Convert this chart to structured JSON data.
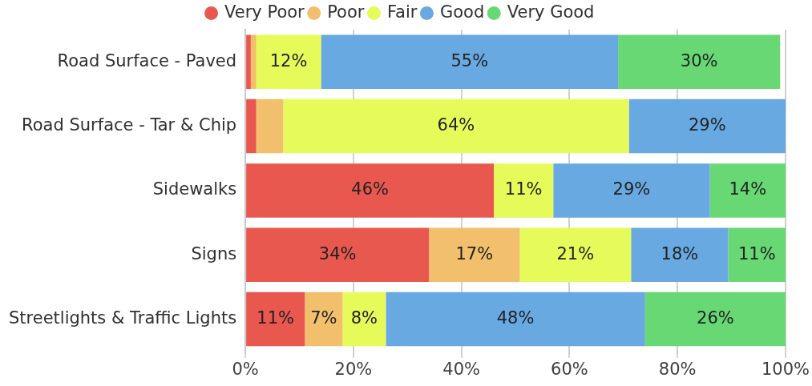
{
  "chart_data": {
    "type": "bar",
    "orientation": "horizontal",
    "stacked": true,
    "categories": [
      "Road Surface - Paved",
      "Road Surface - Tar & Chip",
      "Sidewalks",
      "Signs",
      "Streetlights & Traffic Lights"
    ],
    "series": [
      {
        "name": "Very Poor",
        "color": "#e8584f",
        "values": [
          1,
          2,
          46,
          34,
          11
        ],
        "value_labels": [
          null,
          null,
          "46%",
          "34%",
          "11%"
        ]
      },
      {
        "name": "Poor",
        "color": "#f2bf6c",
        "values": [
          1,
          5,
          0,
          16.8,
          7
        ],
        "value_labels": [
          null,
          null,
          null,
          "17%",
          "7%"
        ]
      },
      {
        "name": "Fair",
        "color": "#e6fb5a",
        "values": [
          12,
          64,
          11,
          20.6,
          8
        ],
        "value_labels": [
          "12%",
          "64%",
          "11%",
          "21%",
          "8%"
        ]
      },
      {
        "name": "Good",
        "color": "#68a9e2",
        "values": [
          55,
          29,
          29,
          18,
          48
        ],
        "value_labels": [
          "55%",
          "29%",
          "29%",
          "18%",
          "48%"
        ]
      },
      {
        "name": "Very Good",
        "color": "#67d874",
        "values": [
          30,
          0,
          14,
          10.6,
          26
        ],
        "value_labels": [
          "30%",
          null,
          "14%",
          "11%",
          "26%"
        ]
      }
    ],
    "xlim": [
      0,
      100
    ],
    "xticks": [
      {
        "value": 0,
        "label": "0%"
      },
      {
        "value": 20,
        "label": "20%"
      },
      {
        "value": 40,
        "label": "40%"
      },
      {
        "value": 60,
        "label": "60%"
      },
      {
        "value": 80,
        "label": "80%"
      },
      {
        "value": 100,
        "label": "100%"
      }
    ],
    "grid": "x",
    "legend": "top"
  }
}
